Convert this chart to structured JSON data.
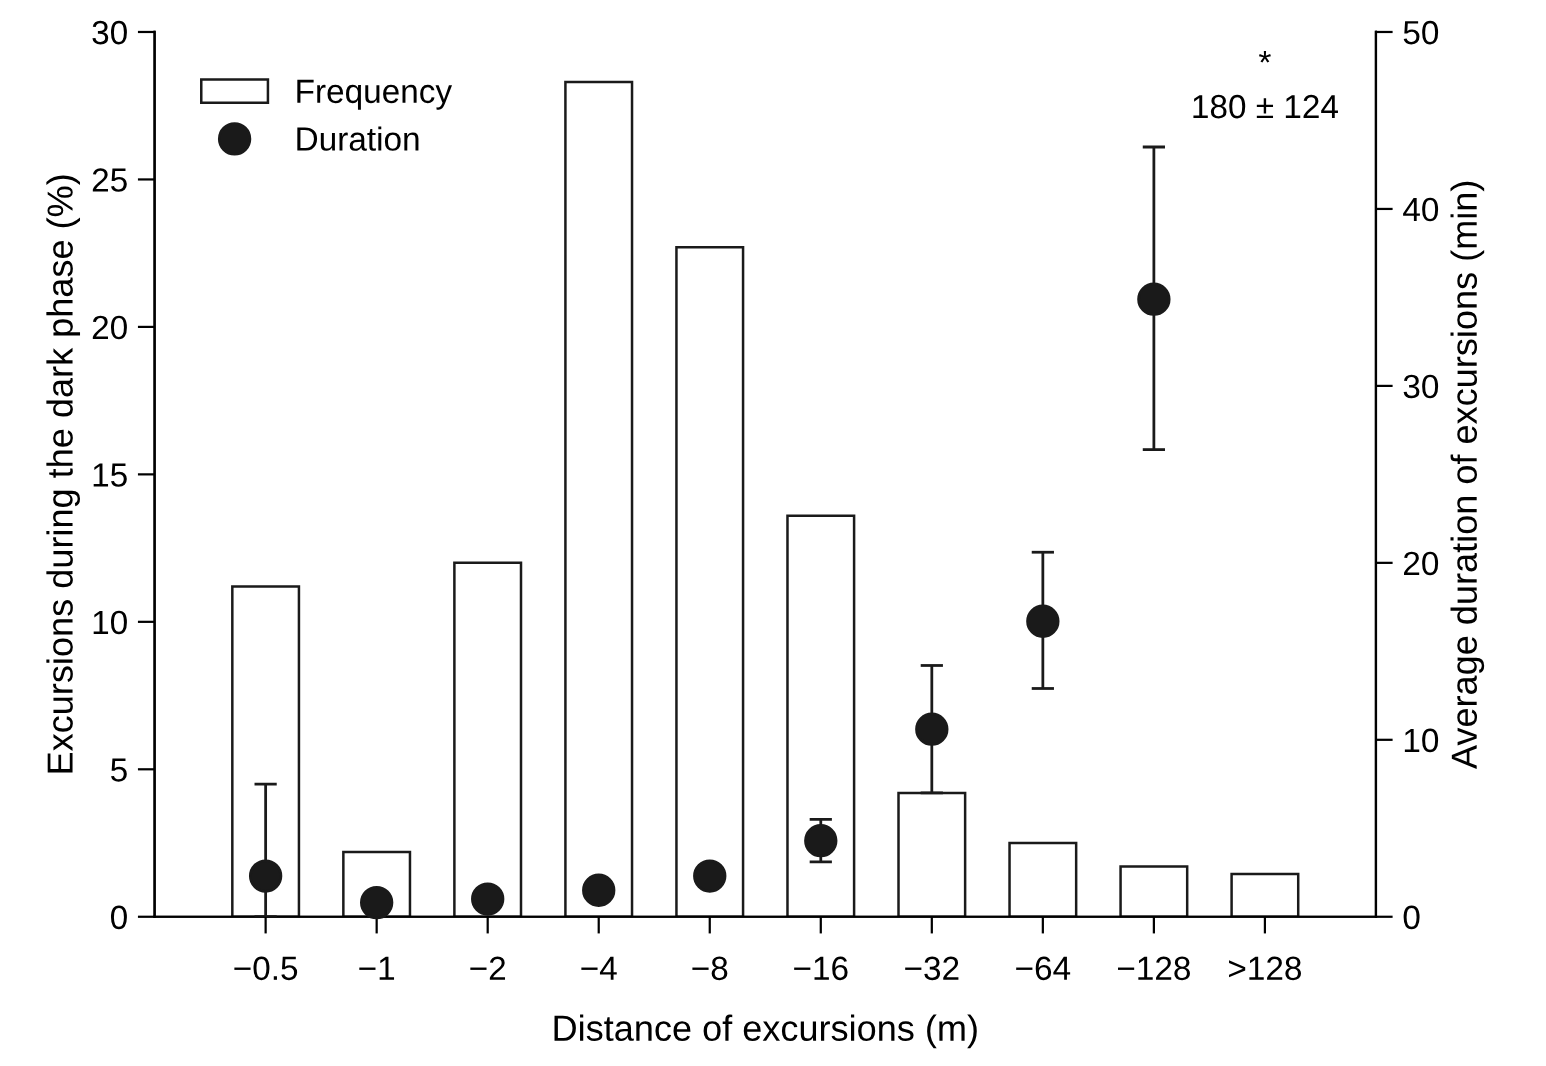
{
  "chart_data": {
    "type": "bar",
    "xlabel": "Distance of excursions (m)",
    "ylabel": "Excursions during the dark phase (%)",
    "y2label": "Average duration of excursions (min)",
    "categories": [
      "−0.5",
      "−1",
      "−2",
      "−4",
      "−8",
      "−16",
      "−32",
      "−64",
      "−128",
      ">128"
    ],
    "series": [
      {
        "name": "Frequency",
        "color": "#ffffff",
        "values": [
          11.2,
          2.2,
          12.0,
          28.3,
          22.7,
          13.6,
          4.2,
          2.5,
          1.7,
          1.45
        ]
      },
      {
        "name": "Duration",
        "type": "scatter",
        "axis": "y2",
        "color": "#1a1a1a",
        "marker": "circle",
        "values": [
          2.3,
          0.8,
          1.0,
          1.5,
          2.3,
          4.3,
          10.6,
          16.7,
          34.9,
          null
        ],
        "errors": [
          [
            0,
            7.5
          ],
          null,
          null,
          null,
          null,
          [
            3.1,
            5.5
          ],
          [
            7.0,
            14.2
          ],
          [
            12.9,
            20.6
          ],
          [
            26.4,
            43.5
          ],
          null
        ]
      }
    ],
    "ylim": [
      0,
      30
    ],
    "yticks": [
      0,
      5,
      10,
      15,
      20,
      25,
      30
    ],
    "y2lim": [
      0,
      50
    ],
    "y2ticks": [
      0,
      10,
      20,
      30,
      40,
      50
    ],
    "annotations": [
      "*",
      "180 ± 124"
    ],
    "legend": "top left",
    "grid": false
  }
}
